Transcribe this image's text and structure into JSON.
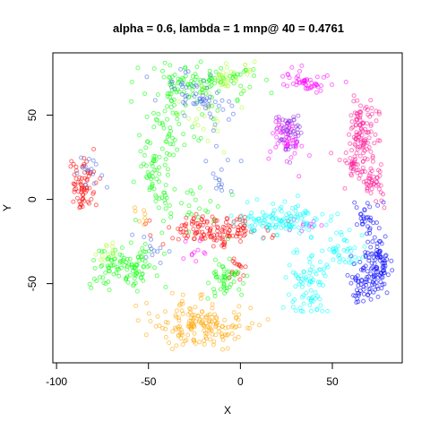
{
  "chart_data": {
    "type": "scatter",
    "title": "alpha = 0.6, lambda = 1 mnp@ 40 = 0.4761",
    "xlabel": "X",
    "ylabel": "Y",
    "xlim": [
      -102,
      88
    ],
    "ylim": [
      -97,
      87
    ],
    "x_ticks": [
      -100,
      -50,
      0,
      50
    ],
    "y_ticks": [
      -50,
      0,
      50
    ],
    "x_tick_labels": [
      "-100",
      "-50",
      "0",
      "50"
    ],
    "y_tick_labels": [
      "-50",
      "0",
      "50"
    ],
    "grid": false,
    "legend": "none",
    "marker": "open-circle",
    "series": [
      {
        "color": "#ff0000",
        "clusters": [
          {
            "cx": -86,
            "cy": 8,
            "sx": 4,
            "sy": 9,
            "n": 70
          },
          {
            "cx": -15,
            "cy": -18,
            "sx": 14,
            "sy": 4,
            "n": 140
          },
          {
            "cx": -2,
            "cy": -40,
            "sx": 3,
            "sy": 4,
            "n": 15
          }
        ]
      },
      {
        "color": "#ffa500",
        "clusters": [
          {
            "cx": -23,
            "cy": -75,
            "sx": 13,
            "sy": 7,
            "n": 170
          },
          {
            "cx": -52,
            "cy": -10,
            "sx": 3,
            "sy": 5,
            "n": 8
          }
        ]
      },
      {
        "color": "#00ff00",
        "clusters": [
          {
            "cx": -62,
            "cy": -40,
            "sx": 9,
            "sy": 6,
            "n": 110
          },
          {
            "cx": -23,
            "cy": 70,
            "sx": 16,
            "sy": 6,
            "n": 110
          },
          {
            "cx": -48,
            "cy": 12,
            "sx": 5,
            "sy": 10,
            "n": 50
          },
          {
            "cx": -7,
            "cy": -47,
            "sx": 5,
            "sy": 5,
            "n": 50
          },
          {
            "cx": -38,
            "cy": 42,
            "sx": 8,
            "sy": 12,
            "n": 60
          },
          {
            "cx": -30,
            "cy": -5,
            "sx": 10,
            "sy": 8,
            "n": 30
          }
        ]
      },
      {
        "color": "#adff2f",
        "clusters": [
          {
            "cx": -6,
            "cy": 72,
            "sx": 6,
            "sy": 7,
            "n": 35
          },
          {
            "cx": -74,
            "cy": -32,
            "sx": 3,
            "sy": 3,
            "n": 12
          },
          {
            "cx": -20,
            "cy": 50,
            "sx": 10,
            "sy": 10,
            "n": 20
          }
        ]
      },
      {
        "color": "#ff00ff",
        "clusters": [
          {
            "cx": 35,
            "cy": 70,
            "sx": 7,
            "sy": 3,
            "n": 50
          },
          {
            "cx": 25,
            "cy": 37,
            "sx": 4,
            "sy": 8,
            "n": 55
          },
          {
            "cx": -25,
            "cy": -33,
            "sx": 6,
            "sy": 3,
            "n": 10
          },
          {
            "cx": 37,
            "cy": -18,
            "sx": 5,
            "sy": 4,
            "n": 10
          }
        ]
      },
      {
        "color": "#ff1493",
        "clusters": [
          {
            "cx": 67,
            "cy": 42,
            "sx": 4,
            "sy": 8,
            "n": 90
          },
          {
            "cx": 65,
            "cy": 20,
            "sx": 5,
            "sy": 7,
            "n": 60
          },
          {
            "cx": 73,
            "cy": 8,
            "sx": 3,
            "sy": 6,
            "n": 30
          }
        ]
      },
      {
        "color": "#00ffff",
        "clusters": [
          {
            "cx": 25,
            "cy": -12,
            "sx": 13,
            "sy": 5,
            "n": 110
          },
          {
            "cx": 37,
            "cy": -50,
            "sx": 5,
            "sy": 11,
            "n": 80
          },
          {
            "cx": 55,
            "cy": -32,
            "sx": 7,
            "sy": 5,
            "n": 40
          },
          {
            "cx": 10,
            "cy": -15,
            "sx": 4,
            "sy": 3,
            "n": 15
          }
        ]
      },
      {
        "color": "#0000ff",
        "clusters": [
          {
            "cx": 75,
            "cy": -40,
            "sx": 4,
            "sy": 10,
            "n": 90
          },
          {
            "cx": 68,
            "cy": -50,
            "sx": 5,
            "sy": 5,
            "n": 50
          },
          {
            "cx": 68,
            "cy": -10,
            "sx": 4,
            "sy": 5,
            "n": 30
          }
        ]
      },
      {
        "color": "#4169e1",
        "clusters": [
          {
            "cx": -18,
            "cy": 55,
            "sx": 6,
            "sy": 8,
            "n": 40
          },
          {
            "cx": -35,
            "cy": 65,
            "sx": 6,
            "sy": 6,
            "n": 20
          },
          {
            "cx": -82,
            "cy": 18,
            "sx": 4,
            "sy": 6,
            "n": 15
          },
          {
            "cx": -48,
            "cy": -30,
            "sx": 4,
            "sy": 4,
            "n": 12
          },
          {
            "cx": -12,
            "cy": 15,
            "sx": 5,
            "sy": 6,
            "n": 15
          }
        ]
      },
      {
        "color": "#8a2be2",
        "clusters": [
          {
            "cx": 27,
            "cy": 42,
            "sx": 4,
            "sy": 7,
            "n": 45
          }
        ]
      }
    ]
  }
}
